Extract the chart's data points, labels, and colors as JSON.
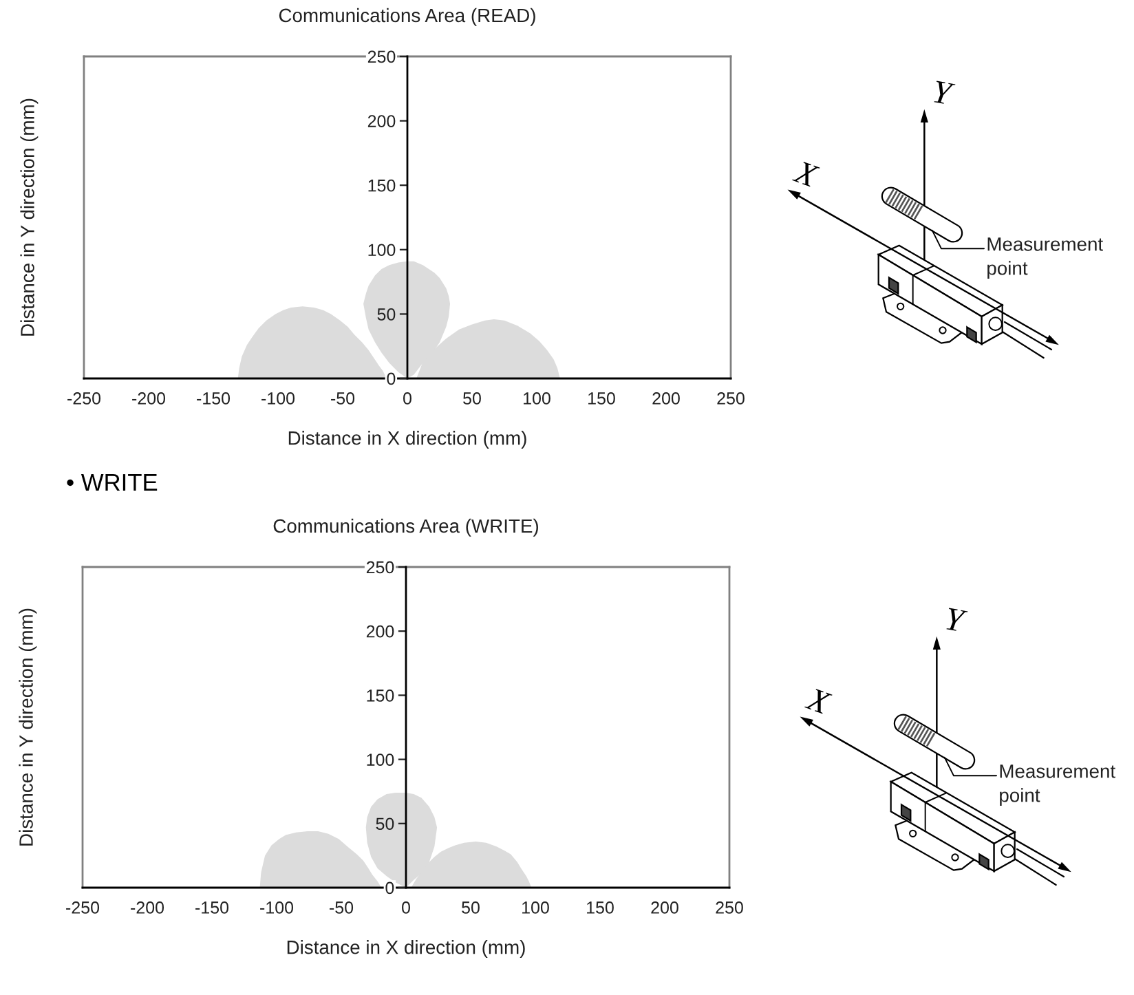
{
  "chart_data": [
    {
      "type": "area",
      "title": "Communications Area (READ)",
      "xlabel": "Distance in X direction (mm)",
      "ylabel": "Distance in Y direction (mm)",
      "xlim": [
        -250,
        250
      ],
      "xticks": [
        -250,
        -200,
        -150,
        -100,
        -50,
        0,
        50,
        100,
        150,
        200,
        250
      ],
      "ylim": [
        0,
        250
      ],
      "yticks": [
        0,
        50,
        100,
        150,
        200,
        250
      ],
      "series": [
        {
          "color": "#dcdcdc",
          "x": [
            -131,
            -130,
            -128,
            -124,
            -120,
            -115,
            -109,
            -102,
            -96,
            -90,
            -81,
            -72,
            -65,
            -59,
            -52,
            -46,
            -41,
            -35,
            -30,
            -26,
            -22,
            -19,
            -16
          ],
          "values": [
            0,
            8,
            17,
            26,
            32,
            39,
            45,
            50,
            53,
            55,
            56,
            55,
            53,
            50,
            45,
            40,
            34,
            28,
            22,
            16,
            10,
            6,
            0
          ]
        },
        {
          "color": "#dcdcdc",
          "x": [
            0,
            -7,
            -14,
            -20,
            -25,
            -30,
            -32,
            -34,
            -32,
            -30,
            -25,
            -20,
            -14,
            -7,
            0,
            5,
            12,
            21,
            25,
            30,
            32,
            33,
            32,
            30,
            25,
            21,
            12,
            5
          ],
          "values": [
            0,
            5,
            12,
            20,
            28,
            38,
            47,
            58,
            66,
            72,
            80,
            85,
            88,
            90,
            91,
            91,
            88,
            82,
            78,
            70,
            64,
            58,
            48,
            40,
            28,
            22,
            12,
            3
          ]
        },
        {
          "color": "#dcdcdc",
          "x": [
            7,
            12,
            20,
            30,
            40,
            50,
            60,
            67,
            75,
            85,
            95,
            102,
            108,
            113,
            116,
            118
          ],
          "values": [
            0,
            13,
            22,
            31,
            38,
            42,
            45,
            46,
            45,
            41,
            35,
            29,
            22,
            15,
            8,
            0
          ]
        }
      ],
      "annotations": [
        "X",
        "Y",
        "Measurement\npoint"
      ]
    },
    {
      "type": "area",
      "title": "Communications Area (WRITE)",
      "xlabel": "Distance in X direction (mm)",
      "ylabel": "Distance in Y direction (mm)",
      "xlim": [
        -250,
        250
      ],
      "xticks": [
        -250,
        -200,
        -150,
        -100,
        -50,
        0,
        50,
        100,
        150,
        200,
        250
      ],
      "ylim": [
        0,
        250
      ],
      "yticks": [
        0,
        50,
        100,
        150,
        200,
        250
      ],
      "series": [
        {
          "color": "#dcdcdc",
          "x": [
            -113,
            -112,
            -109,
            -104,
            -98,
            -93,
            -85,
            -76,
            -68,
            -60,
            -52,
            -44,
            -38,
            -33,
            -29,
            -26,
            -22,
            -19
          ],
          "values": [
            0,
            12,
            25,
            33,
            38,
            41,
            43,
            44,
            44,
            42,
            38,
            31,
            26,
            21,
            15,
            10,
            5,
            0
          ]
        },
        {
          "color": "#dcdcdc",
          "x": [
            0,
            -8,
            -15,
            -22,
            -27,
            -30,
            -31,
            -30,
            -27,
            -22,
            -15,
            -8,
            0,
            6,
            12,
            18,
            22,
            24,
            22,
            18,
            12,
            6
          ],
          "values": [
            0,
            4,
            9,
            15,
            24,
            35,
            47,
            55,
            63,
            69,
            73,
            74,
            74,
            73,
            70,
            63,
            55,
            47,
            32,
            20,
            11,
            6
          ]
        },
        {
          "color": "#dcdcdc",
          "x": [
            4,
            8,
            13,
            17,
            22,
            27,
            33,
            38,
            45,
            54,
            62,
            70,
            76,
            81,
            86,
            89,
            93,
            95,
            97
          ],
          "values": [
            0,
            7,
            13,
            19,
            24,
            28,
            31,
            33,
            35,
            36,
            35,
            32,
            29,
            26,
            20,
            15,
            9,
            5,
            0
          ]
        }
      ],
      "annotations": [
        "• WRITE",
        "X",
        "Y",
        "Measurement\npoint"
      ]
    }
  ]
}
